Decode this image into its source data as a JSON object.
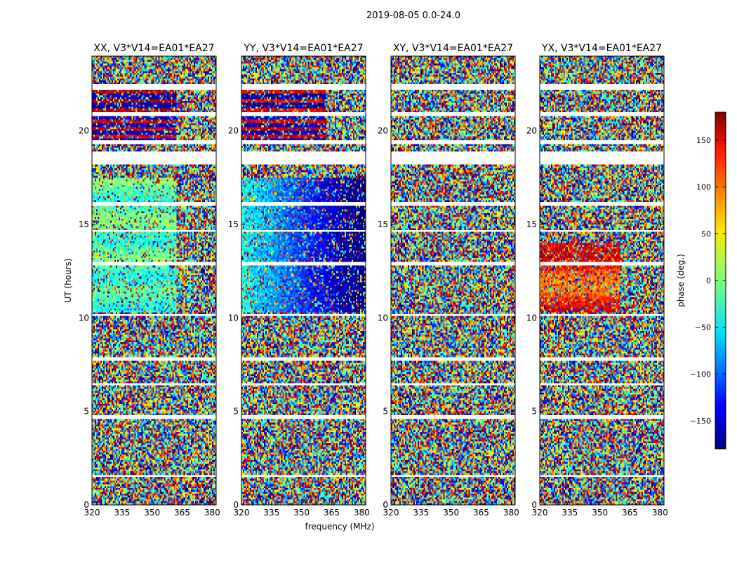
{
  "chart_data": {
    "type": "heatmap",
    "suptitle": "2019-08-05 0.0-24.0",
    "xlabel": "frequency (MHz)",
    "ylabel": "UT (hours)",
    "xlim": [
      320,
      382
    ],
    "ylim": [
      0,
      24
    ],
    "x_ticks": [
      "320",
      "335",
      "350",
      "365",
      "380"
    ],
    "y_ticks": [
      "0",
      "5",
      "10",
      "15",
      "20"
    ],
    "panels": [
      {
        "title": "XX, V3*V14=EA01*EA27"
      },
      {
        "title": "YY, V3*V14=EA01*EA27"
      },
      {
        "title": "XY, V3*V14=EA01*EA27"
      },
      {
        "title": "YX, V3*V14=EA01*EA27"
      }
    ],
    "colorbar": {
      "label": "phase (deg.)",
      "range": [
        -180,
        180
      ],
      "ticks": [
        "−150",
        "−100",
        "−50",
        "0",
        "50",
        "100",
        "150"
      ],
      "colormap": "jet"
    }
  }
}
